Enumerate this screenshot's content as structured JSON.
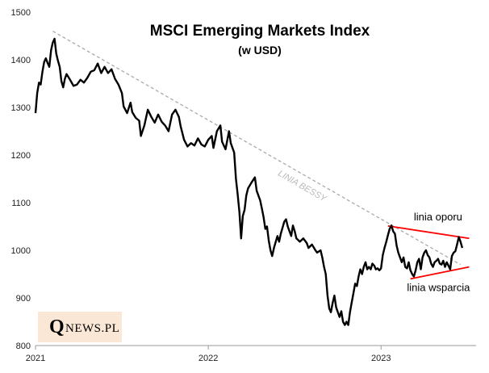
{
  "chart_data": {
    "type": "line",
    "title": "MSCI Emerging Markets Index",
    "subtitle": "(w USD)",
    "xlabel": "",
    "ylabel": "",
    "xlim": [
      2021.0,
      2023.55
    ],
    "ylim": [
      800,
      1500
    ],
    "y_ticks": [
      800,
      900,
      1000,
      1100,
      1200,
      1300,
      1400,
      1500
    ],
    "x_ticks": [
      {
        "value": 2021,
        "label": "2021"
      },
      {
        "value": 2022,
        "label": "2022"
      },
      {
        "value": 2023,
        "label": "2023"
      }
    ],
    "grid": false,
    "series": [
      {
        "color": "#000000",
        "points": [
          [
            2021.0,
            1288
          ],
          [
            2021.01,
            1330
          ],
          [
            2021.02,
            1352
          ],
          [
            2021.03,
            1348
          ],
          [
            2021.04,
            1375
          ],
          [
            2021.05,
            1395
          ],
          [
            2021.06,
            1403
          ],
          [
            2021.07,
            1393
          ],
          [
            2021.08,
            1385
          ],
          [
            2021.09,
            1420
          ],
          [
            2021.1,
            1436
          ],
          [
            2021.11,
            1444
          ],
          [
            2021.12,
            1413
          ],
          [
            2021.13,
            1398
          ],
          [
            2021.14,
            1385
          ],
          [
            2021.15,
            1355
          ],
          [
            2021.16,
            1342
          ],
          [
            2021.17,
            1360
          ],
          [
            2021.18,
            1370
          ],
          [
            2021.2,
            1358
          ],
          [
            2021.22,
            1345
          ],
          [
            2021.24,
            1348
          ],
          [
            2021.26,
            1358
          ],
          [
            2021.28,
            1352
          ],
          [
            2021.3,
            1362
          ],
          [
            2021.32,
            1375
          ],
          [
            2021.34,
            1378
          ],
          [
            2021.36,
            1392
          ],
          [
            2021.38,
            1372
          ],
          [
            2021.4,
            1385
          ],
          [
            2021.42,
            1372
          ],
          [
            2021.44,
            1380
          ],
          [
            2021.46,
            1360
          ],
          [
            2021.48,
            1348
          ],
          [
            2021.5,
            1330
          ],
          [
            2021.51,
            1302
          ],
          [
            2021.53,
            1288
          ],
          [
            2021.55,
            1310
          ],
          [
            2021.56,
            1290
          ],
          [
            2021.58,
            1278
          ],
          [
            2021.6,
            1272
          ],
          [
            2021.61,
            1240
          ],
          [
            2021.63,
            1262
          ],
          [
            2021.65,
            1295
          ],
          [
            2021.67,
            1280
          ],
          [
            2021.69,
            1268
          ],
          [
            2021.71,
            1285
          ],
          [
            2021.73,
            1270
          ],
          [
            2021.75,
            1262
          ],
          [
            2021.77,
            1250
          ],
          [
            2021.79,
            1285
          ],
          [
            2021.81,
            1295
          ],
          [
            2021.83,
            1280
          ],
          [
            2021.84,
            1260
          ],
          [
            2021.86,
            1232
          ],
          [
            2021.88,
            1218
          ],
          [
            2021.9,
            1225
          ],
          [
            2021.92,
            1220
          ],
          [
            2021.94,
            1235
          ],
          [
            2021.96,
            1222
          ],
          [
            2021.98,
            1218
          ],
          [
            2022.0,
            1232
          ],
          [
            2022.02,
            1240
          ],
          [
            2022.03,
            1215
          ],
          [
            2022.05,
            1250
          ],
          [
            2022.07,
            1262
          ],
          [
            2022.08,
            1228
          ],
          [
            2022.1,
            1212
          ],
          [
            2022.12,
            1250
          ],
          [
            2022.13,
            1225
          ],
          [
            2022.15,
            1205
          ],
          [
            2022.16,
            1150
          ],
          [
            2022.17,
            1118
          ],
          [
            2022.18,
            1080
          ],
          [
            2022.19,
            1025
          ],
          [
            2022.2,
            1072
          ],
          [
            2022.21,
            1085
          ],
          [
            2022.22,
            1115
          ],
          [
            2022.23,
            1130
          ],
          [
            2022.25,
            1142
          ],
          [
            2022.27,
            1153
          ],
          [
            2022.28,
            1125
          ],
          [
            2022.3,
            1105
          ],
          [
            2022.31,
            1088
          ],
          [
            2022.32,
            1070
          ],
          [
            2022.33,
            1045
          ],
          [
            2022.34,
            1050
          ],
          [
            2022.35,
            1020
          ],
          [
            2022.36,
            1000
          ],
          [
            2022.37,
            988
          ],
          [
            2022.38,
            1005
          ],
          [
            2022.4,
            1030
          ],
          [
            2022.41,
            1018
          ],
          [
            2022.42,
            1035
          ],
          [
            2022.44,
            1060
          ],
          [
            2022.45,
            1065
          ],
          [
            2022.46,
            1050
          ],
          [
            2022.48,
            1030
          ],
          [
            2022.49,
            1052
          ],
          [
            2022.5,
            1040
          ],
          [
            2022.51,
            1025
          ],
          [
            2022.53,
            1018
          ],
          [
            2022.55,
            1025
          ],
          [
            2022.57,
            1015
          ],
          [
            2022.58,
            1005
          ],
          [
            2022.6,
            1012
          ],
          [
            2022.62,
            1000
          ],
          [
            2022.63,
            995
          ],
          [
            2022.65,
            1000
          ],
          [
            2022.66,
            985
          ],
          [
            2022.67,
            965
          ],
          [
            2022.68,
            950
          ],
          [
            2022.69,
            905
          ],
          [
            2022.7,
            878
          ],
          [
            2022.71,
            870
          ],
          [
            2022.72,
            890
          ],
          [
            2022.73,
            905
          ],
          [
            2022.74,
            880
          ],
          [
            2022.75,
            870
          ],
          [
            2022.76,
            860
          ],
          [
            2022.77,
            872
          ],
          [
            2022.78,
            850
          ],
          [
            2022.79,
            843
          ],
          [
            2022.8,
            850
          ],
          [
            2022.81,
            843
          ],
          [
            2022.82,
            870
          ],
          [
            2022.83,
            890
          ],
          [
            2022.84,
            910
          ],
          [
            2022.85,
            930
          ],
          [
            2022.86,
            925
          ],
          [
            2022.87,
            945
          ],
          [
            2022.88,
            960
          ],
          [
            2022.89,
            950
          ],
          [
            2022.9,
            965
          ],
          [
            2022.91,
            975
          ],
          [
            2022.92,
            960
          ],
          [
            2022.93,
            965
          ],
          [
            2022.94,
            960
          ],
          [
            2022.95,
            972
          ],
          [
            2022.96,
            968
          ],
          [
            2022.97,
            960
          ],
          [
            2022.98,
            962
          ],
          [
            2022.99,
            958
          ],
          [
            2023.0,
            962
          ],
          [
            2023.01,
            990
          ],
          [
            2023.02,
            1005
          ],
          [
            2023.03,
            1018
          ],
          [
            2023.04,
            1032
          ],
          [
            2023.05,
            1045
          ],
          [
            2023.06,
            1052
          ],
          [
            2023.07,
            1040
          ],
          [
            2023.08,
            1035
          ],
          [
            2023.09,
            1010
          ],
          [
            2023.1,
            995
          ],
          [
            2023.11,
            985
          ],
          [
            2023.12,
            975
          ],
          [
            2023.13,
            985
          ],
          [
            2023.14,
            965
          ],
          [
            2023.15,
            962
          ],
          [
            2023.16,
            975
          ],
          [
            2023.17,
            958
          ],
          [
            2023.18,
            950
          ],
          [
            2023.19,
            945
          ],
          [
            2023.2,
            958
          ],
          [
            2023.21,
            975
          ],
          [
            2023.22,
            982
          ],
          [
            2023.23,
            960
          ],
          [
            2023.24,
            985
          ],
          [
            2023.25,
            995
          ],
          [
            2023.26,
            1000
          ],
          [
            2023.27,
            990
          ],
          [
            2023.28,
            985
          ],
          [
            2023.29,
            972
          ],
          [
            2023.3,
            965
          ],
          [
            2023.31,
            975
          ],
          [
            2023.32,
            978
          ],
          [
            2023.33,
            982
          ],
          [
            2023.34,
            972
          ],
          [
            2023.35,
            970
          ],
          [
            2023.36,
            978
          ],
          [
            2023.37,
            965
          ],
          [
            2023.38,
            975
          ],
          [
            2023.39,
            968
          ],
          [
            2023.4,
            960
          ],
          [
            2023.41,
            988
          ],
          [
            2023.42,
            995
          ],
          [
            2023.43,
            998
          ],
          [
            2023.44,
            1012
          ],
          [
            2023.45,
            1028
          ],
          [
            2023.46,
            1018
          ],
          [
            2023.47,
            1005
          ]
        ]
      }
    ],
    "annotations": [
      {
        "label": "LINIA BESSY",
        "color": "#aaaaaa",
        "style": "dashed",
        "line": [
          [
            2021.1,
            1460
          ],
          [
            2023.46,
            970
          ]
        ]
      },
      {
        "label": "linia oporu",
        "color": "#ff0000",
        "style": "solid",
        "line": [
          [
            2023.04,
            1051
          ],
          [
            2023.51,
            1025
          ]
        ]
      },
      {
        "label": "linia wsparcia",
        "color": "#ff0000",
        "style": "solid",
        "line": [
          [
            2023.17,
            940
          ],
          [
            2023.51,
            965
          ]
        ]
      }
    ]
  },
  "logo": {
    "q": "Q",
    "rest": "NEWS.PL"
  }
}
